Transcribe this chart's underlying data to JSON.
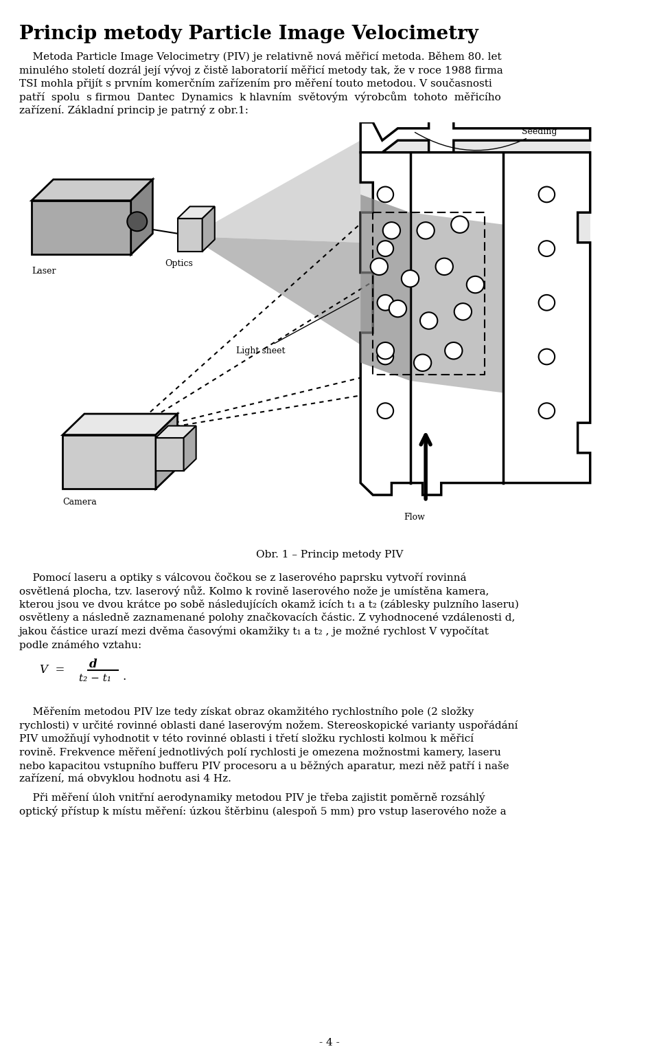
{
  "title": "Princip metody Particle Image Velocimetry",
  "para1_lines": [
    "    Metoda Particle Image Velocimetry (PIV) je relativně nová měřicí metoda. Během 80. let",
    "minulého století dozrál její vývoj z čistě laboratorií měřicí metody tak, že v roce 1988 firma",
    "TSI mohla přijít s prvním komerčním zařízením pro měření touto metodou. V současnosti",
    "patří  spolu  s firmou  Dantec  Dynamics  k hlavním  světovým  výrobcům  tohoto  měřicího",
    "zařízení. Základní princip je patrný z obr.1:"
  ],
  "fig_caption": "Obr. 1 – Princip metody PIV",
  "body_lines": [
    "    Pomocí laseru a optiky s válcovou čočkou se z laserového paprsku vytvoří rovinná",
    "osvětlená plocha, tzv. laserový nůž. Kolmo k rovině laserového nože je umístěna kamera,",
    "kterou jsou ve dvou krátce po sobě následujících okamž icích t₁ a t₂ (záblesky pulzního laseru)",
    "osvětleny a následně zaznamenané polohy značkovacích částic. Z vyhodnocené vzdálenosti d,",
    "jakou částice urazí mezi dvěma časovými okamžiky t₁ a t₂ , je možné rychlost V vypočítat",
    "podle známého vztahu:"
  ],
  "para3_lines": [
    "    Měřením metodou PIV lze tedy získat obraz okamžitého rychlostního pole (2 složky",
    "rychlosti) v určité rovinné oblasti dané laserovým nožem. Stereoskopické varianty uspořádání",
    "PIV umožňují vyhodnotit v této rovinné oblasti i třetí složku rychlosti kolmou k měřicí",
    "rovině. Frekvence měření jednotlivých polí rychlosti je omezena možnostmi kamery, laseru",
    "nebo kapacitou vstupního bufferu PIV procesoru a u běžných aparatur, mezi něž patří i naše",
    "zařízení, má obvyklou hodnotu asi 4 Hz."
  ],
  "para4_lines": [
    "    Při měření úloh vnitřní aerodynamiky metodou PIV je třeba zajistit poměrně rozsáhlý",
    "optický přístup k místu měření: úzkou štěrbinu (alespoň 5 mm) pro vstup laserového nože a"
  ],
  "page_number": "- 4 -",
  "bg_color": "#ffffff",
  "text_color": "#000000"
}
